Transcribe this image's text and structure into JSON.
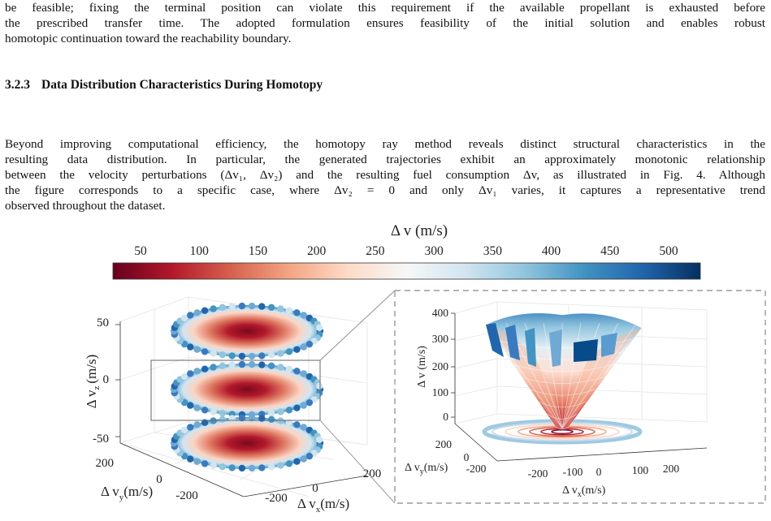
{
  "paragraph_1": {
    "lines": [
      "be feasible; fixing the terminal position can violate this requirement if the available propellant is exhausted before",
      "the prescribed transfer time. The adopted formulation ensures feasibility of the initial solution and enables robust",
      "homotopic continuation toward the reachability boundary."
    ]
  },
  "section": {
    "number": "3.2.3",
    "title": "Data Distribution Characteristics During Homotopy"
  },
  "paragraph_2": {
    "lines": [
      "Beyond improving computational efficiency, the homotopy ray method reveals distinct structural characteristics in the",
      "resulting data distribution. In particular, the generated trajectories exhibit an approximately monotonic relationship",
      "between the velocity perturbations (Δv₁, Δv₂) and the resulting fuel consumption Δv, as illustrated in Fig. 4. Although",
      "the figure corresponds to a specific case, where Δv₂ = 0 and only Δv₁ varies, it captures a representative trend",
      "observed throughout the dataset."
    ]
  },
  "figure": {
    "colorbar": {
      "title": "Δ v  (m/s)",
      "ticks": [
        "50",
        "100",
        "150",
        "200",
        "250",
        "300",
        "350",
        "400",
        "450",
        "500"
      ],
      "colors": [
        "#67001f",
        "#b2182b",
        "#d6604d",
        "#f4a582",
        "#fddbc7",
        "#f7f7f7",
        "#d1e5f0",
        "#92c5de",
        "#4393c3",
        "#2166ac",
        "#053061"
      ]
    },
    "left_plot": {
      "z_ticks": [
        "50",
        "0",
        "-50"
      ],
      "z_label": "Δ v",
      "z_label_sub": "z",
      "z_unit": "(m/s)",
      "y_ticks": [
        "200",
        "0",
        "-200"
      ],
      "y_label": "Δ v",
      "y_label_sub": "y",
      "y_unit": "(m/s)",
      "x_ticks": [
        "-200",
        "0",
        "200"
      ],
      "x_label": "Δ v",
      "x_label_sub": "x",
      "x_unit": "(m/s)"
    },
    "right_plot": {
      "z_ticks": [
        "400",
        "300",
        "200",
        "100",
        "0"
      ],
      "z_label": "Δ v  (m/s)",
      "y_ticks": [
        "200",
        "0",
        "-200"
      ],
      "y_label": "Δ v",
      "y_label_sub": "y",
      "y_unit": "(m/s)",
      "x_ticks": [
        "-200",
        "-100",
        "0",
        "100",
        "200"
      ],
      "x_label": "Δ v",
      "x_label_sub": "x",
      "x_unit": "(m/s)"
    }
  }
}
